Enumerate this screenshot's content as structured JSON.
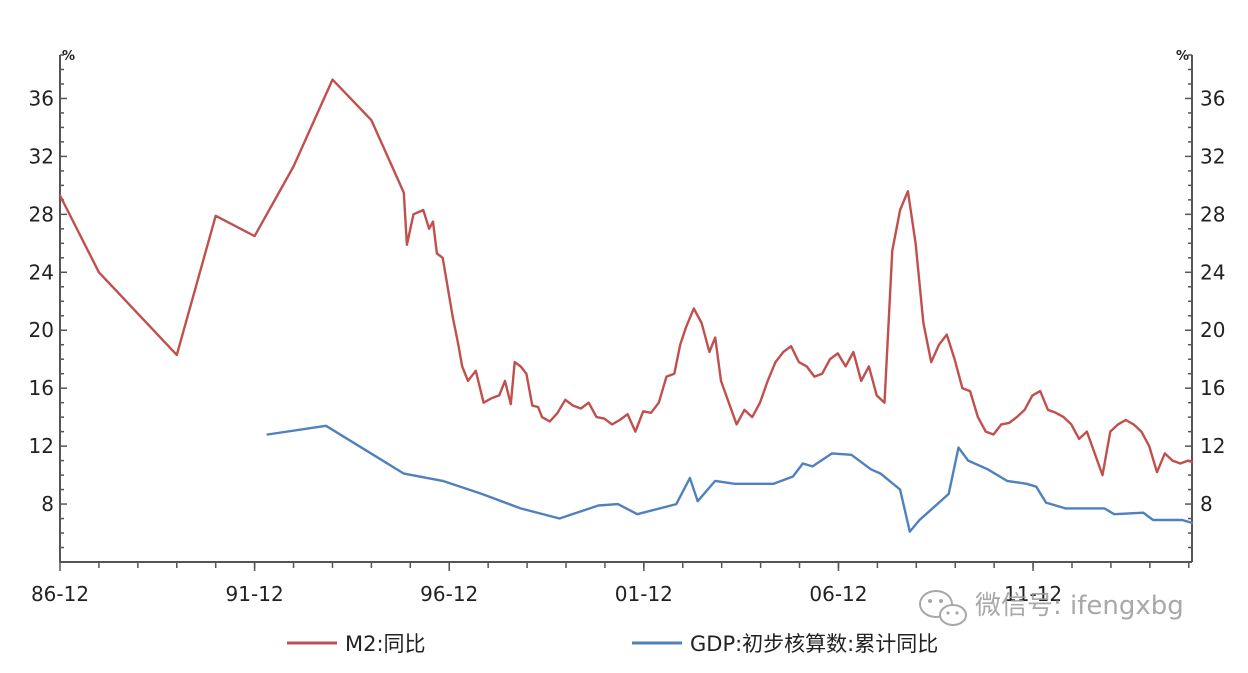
{
  "chart_data": {
    "type": "line",
    "y_unit_left": "%",
    "y_unit_right": "%",
    "ylim": [
      4,
      39
    ],
    "yticks": [
      8,
      12,
      16,
      20,
      24,
      28,
      32,
      36
    ],
    "xlim": [
      1986.917,
      2016.0
    ],
    "x_tick_labels": [
      "86-12",
      "91-12",
      "96-12",
      "01-12",
      "06-12",
      "11-12"
    ],
    "x_tick_positions": [
      1986.917,
      1991.917,
      1996.917,
      2001.917,
      2006.917,
      2011.917
    ],
    "grid": false,
    "legend_placement": "bottom",
    "series": [
      {
        "name": "M2:同比",
        "color": "#c0504d",
        "x": [
          1986.917,
          1987.917,
          1989.917,
          1990.917,
          1991.917,
          1992.917,
          1993.917,
          1994.917,
          1995.75,
          1995.83,
          1996.0,
          1996.25,
          1996.4,
          1996.5,
          1996.6,
          1996.75,
          1997.0,
          1997.15,
          1997.25,
          1997.4,
          1997.6,
          1997.8,
          1998.0,
          1998.2,
          1998.35,
          1998.5,
          1998.6,
          1998.75,
          1998.9,
          1999.05,
          1999.2,
          1999.3,
          1999.5,
          1999.7,
          1999.9,
          2000.1,
          2000.3,
          2000.5,
          2000.7,
          2000.9,
          2001.1,
          2001.3,
          2001.5,
          2001.7,
          2001.9,
          2002.1,
          2002.3,
          2002.5,
          2002.7,
          2002.85,
          2003.0,
          2003.2,
          2003.4,
          2003.6,
          2003.75,
          2003.9,
          2004.1,
          2004.3,
          2004.5,
          2004.7,
          2004.9,
          2005.1,
          2005.3,
          2005.5,
          2005.7,
          2005.9,
          2006.1,
          2006.3,
          2006.5,
          2006.7,
          2006.9,
          2007.1,
          2007.3,
          2007.5,
          2007.7,
          2007.9,
          2008.1,
          2008.3,
          2008.5,
          2008.7,
          2008.9,
          2009.1,
          2009.3,
          2009.5,
          2009.7,
          2009.9,
          2010.1,
          2010.3,
          2010.5,
          2010.7,
          2010.9,
          2011.1,
          2011.3,
          2011.5,
          2011.7,
          2011.9,
          2012.1,
          2012.3,
          2012.5,
          2012.7,
          2012.9,
          2013.1,
          2013.3,
          2013.5,
          2013.7,
          2013.9,
          2014.1,
          2014.3,
          2014.5,
          2014.7,
          2014.9,
          2015.1,
          2015.3,
          2015.5,
          2015.7,
          2015.9,
          2016.0
        ],
        "values": [
          29.3,
          24.0,
          18.3,
          27.9,
          26.5,
          31.3,
          37.3,
          34.5,
          29.5,
          25.9,
          28.0,
          28.3,
          27.0,
          27.5,
          25.3,
          25.0,
          21.0,
          19.0,
          17.5,
          16.5,
          17.2,
          15.0,
          15.3,
          15.5,
          16.5,
          14.9,
          17.8,
          17.5,
          17.0,
          14.8,
          14.7,
          14.0,
          13.7,
          14.3,
          15.2,
          14.8,
          14.6,
          15.0,
          14.0,
          13.9,
          13.5,
          13.8,
          14.2,
          13.0,
          14.4,
          14.3,
          15.0,
          16.8,
          17.0,
          19.0,
          20.2,
          21.5,
          20.5,
          18.5,
          19.5,
          16.5,
          15.0,
          13.5,
          14.5,
          14.0,
          15.0,
          16.5,
          17.8,
          18.5,
          18.9,
          17.8,
          17.5,
          16.8,
          17.0,
          18.0,
          18.4,
          17.5,
          18.5,
          16.5,
          17.5,
          15.5,
          15.0,
          25.5,
          28.3,
          29.6,
          26.0,
          20.5,
          17.8,
          19.0,
          19.7,
          18.0,
          16.0,
          15.8,
          14.0,
          13.0,
          12.8,
          13.5,
          13.6,
          14.0,
          14.5,
          15.5,
          15.8,
          14.5,
          14.3,
          14.0,
          13.5,
          12.5,
          13.0,
          11.5,
          10.0,
          13.0,
          13.5,
          13.8,
          13.5,
          13.0,
          12.0,
          10.2,
          11.5,
          11.0,
          10.8,
          11.0,
          10.9
        ],
        "note": ""
      },
      {
        "name": "GDP:初步核算数:累计同比",
        "color": "#4f81bd",
        "x": [
          1992.25,
          1993.75,
          1995.75,
          1996.75,
          1997.75,
          1998.75,
          1999.75,
          2000.75,
          2001.25,
          2001.75,
          2002.75,
          2003.1,
          2003.3,
          2003.75,
          2004.25,
          2005.25,
          2005.75,
          2006.0,
          2006.25,
          2006.75,
          2007.25,
          2007.75,
          2008.0,
          2008.5,
          2008.75,
          2009.0,
          2009.25,
          2009.75,
          2010.0,
          2010.25,
          2010.75,
          2011.25,
          2011.75,
          2012.0,
          2012.25,
          2012.75,
          2013.75,
          2014.0,
          2014.75,
          2015.0,
          2015.75,
          2016.0
        ],
        "values": [
          12.8,
          13.4,
          10.1,
          9.6,
          8.7,
          7.7,
          7.0,
          7.9,
          8.0,
          7.3,
          8.0,
          9.8,
          8.2,
          9.6,
          9.4,
          9.4,
          9.9,
          10.8,
          10.6,
          11.5,
          11.4,
          10.4,
          10.1,
          9.0,
          6.1,
          6.9,
          7.5,
          8.7,
          11.9,
          11.0,
          10.4,
          9.6,
          9.4,
          9.2,
          8.1,
          7.7,
          7.7,
          7.3,
          7.4,
          6.9,
          6.9,
          6.7
        ]
      }
    ]
  },
  "watermark": {
    "icon": "wechat-icon",
    "text": "微信号: ifengxbg"
  }
}
